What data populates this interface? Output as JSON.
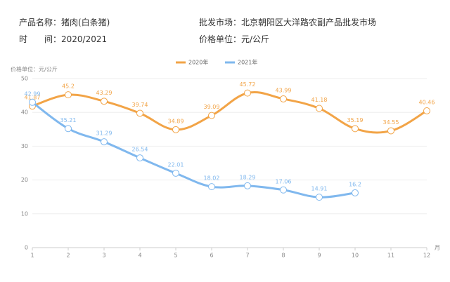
{
  "header": {
    "product": "产品名称：猪肉(白条猪)",
    "period": "时　　间：2020/2021",
    "market": "批发市场：北京朝阳区大洋路农副产品批发市场",
    "unit": "价格单位：元/公斤"
  },
  "chart_data": {
    "type": "line",
    "y_axis_label": "价格单位：元/公斤",
    "x_axis_label": "月",
    "x": [
      1,
      2,
      3,
      4,
      5,
      6,
      7,
      8,
      9,
      10,
      11,
      12
    ],
    "xlim": [
      1,
      12
    ],
    "xticks": [
      1,
      2,
      3,
      4,
      5,
      6,
      7,
      8,
      9,
      10,
      11,
      12
    ],
    "ylim": [
      0,
      50
    ],
    "yticks": [
      0,
      10,
      20,
      30,
      40,
      50
    ],
    "grid": true,
    "legend": "top",
    "series": [
      {
        "name": "2020年",
        "color": "#f2a447",
        "values": [
          41.87,
          45.2,
          43.29,
          39.74,
          34.89,
          39.09,
          45.72,
          43.99,
          41.18,
          35.19,
          34.55,
          40.46
        ]
      },
      {
        "name": "2021年",
        "color": "#80b8ee",
        "values": [
          42.99,
          35.21,
          31.29,
          26.54,
          22.01,
          18.02,
          18.29,
          17.06,
          14.91,
          16.2,
          null,
          null
        ]
      }
    ]
  }
}
